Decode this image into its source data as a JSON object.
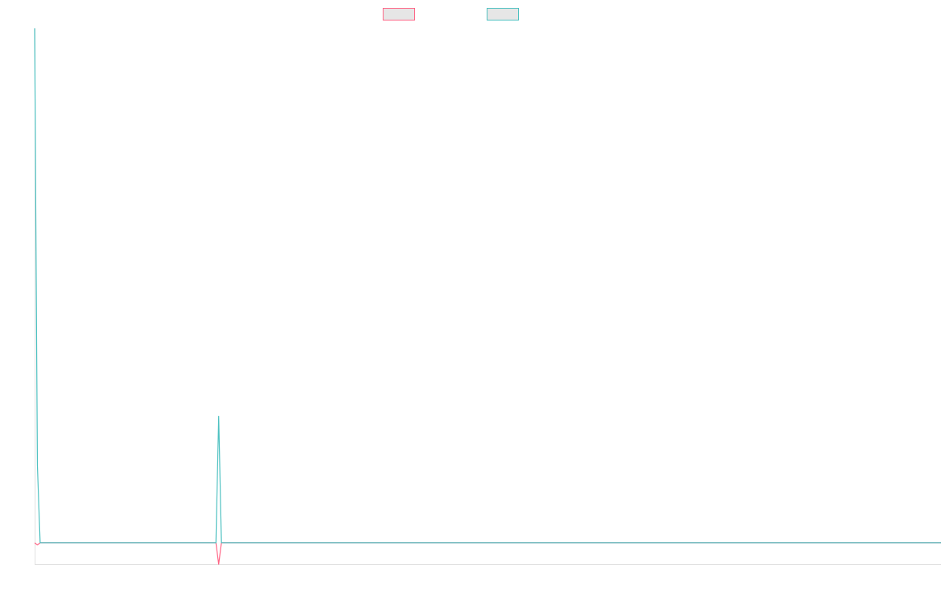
{
  "chart_data": {
    "type": "line",
    "series": [
      {
        "color": "#ff6384",
        "x": [
          0,
          1,
          2,
          66,
          67,
          68,
          330
        ],
        "values": [
          0,
          -0.1,
          0,
          0,
          -1,
          0,
          0
        ]
      },
      {
        "color": "#4bc0c0",
        "x": [
          0,
          1,
          2,
          66,
          67,
          68,
          330
        ],
        "values": [
          24,
          3.6,
          0,
          0,
          5.9,
          0,
          0
        ]
      }
    ],
    "xlim": [
      0,
      330
    ],
    "ylim": [
      -1,
      24
    ],
    "legend": "top"
  }
}
